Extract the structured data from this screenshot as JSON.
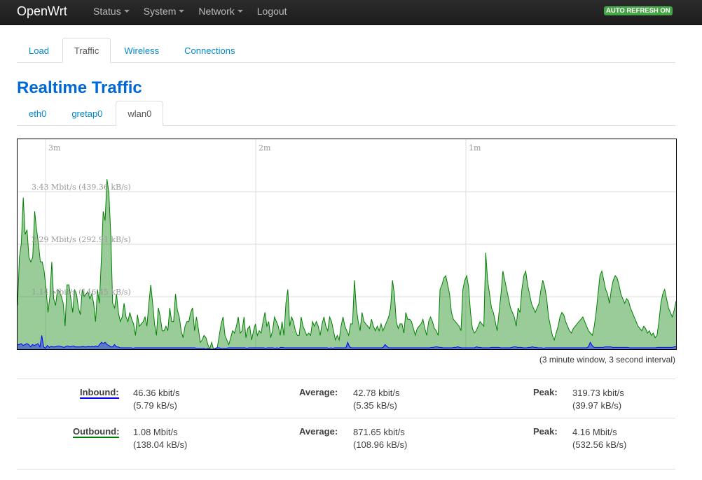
{
  "navbar": {
    "brand": "OpenWrt",
    "menu": [
      {
        "label": "Status",
        "dropdown": true
      },
      {
        "label": "System",
        "dropdown": true
      },
      {
        "label": "Network",
        "dropdown": true
      },
      {
        "label": "Logout",
        "dropdown": false
      }
    ],
    "badge": "AUTO REFRESH ON",
    "badge_color": "#46a546"
  },
  "tabs": [
    {
      "label": "Load",
      "active": false
    },
    {
      "label": "Traffic",
      "active": true
    },
    {
      "label": "Wireless",
      "active": false
    },
    {
      "label": "Connections",
      "active": false
    }
  ],
  "page_title": "Realtime Traffic",
  "interface_tabs": [
    {
      "label": "eth0",
      "active": false
    },
    {
      "label": "gretap0",
      "active": false
    },
    {
      "label": "wlan0",
      "active": true
    }
  ],
  "graph": {
    "time_labels": [
      "3m",
      "2m",
      "1m"
    ],
    "y_labels": [
      "3.43 Mbit/s (439.36 kB/s)",
      "2.29 Mbit/s (292.91 kB/s)",
      "1.14 Mbit/s (146.45 kB/s)"
    ],
    "caption": "(3 minute window, 3 second interval)",
    "outbound_color": "#008000",
    "inbound_color": "#0000ff"
  },
  "chart_data": {
    "type": "area",
    "xlabel": "",
    "ylabel": "",
    "ylim": [
      0,
      4.57
    ],
    "grid": true,
    "interval_seconds": 3,
    "x_ticks": [
      "3m",
      "2m",
      "1m"
    ],
    "y_ticks": [
      1.14,
      2.29,
      3.43
    ],
    "series": [
      {
        "values": [
          0.95,
          2.0,
          2.3,
          3.3,
          2.5,
          2.6,
          2.0,
          1.9,
          2.0,
          3.0,
          2.6,
          2.3,
          1.9,
          1.9,
          1.7,
          1.3,
          0.8,
          1.15,
          1.9,
          1.1,
          0.95,
          1.3,
          1.25,
          1.15,
          1.0,
          0.5,
          1.4,
          1.4,
          1.1,
          0.8,
          1.3,
          1.2,
          0.9,
          0.75,
          1.3,
          1.15,
          1.2,
          1.25,
          1.1,
          1.2,
          1.0,
          0.6,
          1.3,
          1.0,
          1.9,
          3.0,
          2.8,
          3.7,
          3.4,
          2.5,
          1.0,
          0.9,
          1.2,
          0.8,
          0.6,
          0.7,
          1.0,
          0.7,
          0.6,
          0.8,
          0.65,
          0.55,
          0.3,
          0.75,
          0.5,
          0.55,
          0.6,
          0.7,
          0.5,
          1.0,
          1.4,
          1.0,
          0.55,
          0.3,
          0.9,
          0.7,
          0.4,
          0.4,
          0.5,
          0.4,
          0.9,
          0.6,
          0.6,
          1.2,
          0.85,
          0.7,
          0.4,
          0.25,
          0.5,
          0.6,
          0.6,
          0.8,
          0.9,
          0.4,
          0.7,
          0.45,
          0.15,
          0.2,
          0.3,
          0.25,
          0.1,
          0.0,
          0.15,
          0.0,
          0.0,
          0.05,
          0.3,
          0.55,
          0.7,
          0.3,
          0.2,
          0.1,
          0.25,
          0.4,
          0.35,
          0.5,
          0.7,
          0.35,
          0.4,
          0.7,
          0.25,
          0.45,
          0.5,
          0.2,
          0.4,
          0.55,
          0.3,
          0.4,
          0.35,
          0.6,
          0.8,
          0.5,
          0.6,
          0.25,
          0.4,
          0.7,
          0.6,
          0.5,
          0.3,
          0.6,
          0.3,
          1.0,
          1.3,
          0.5,
          0.7,
          0.6,
          0.4,
          0.3,
          0.3,
          0.7,
          0.5,
          0.4,
          0.3,
          0.35,
          0.3,
          0.6,
          0.5,
          0.6,
          0.5,
          0.3,
          0.55,
          0.7,
          0.5,
          0.4,
          0.7,
          0.6,
          0.4,
          0.2,
          0.3,
          0.2,
          0.5,
          0.7,
          0.5,
          0.4,
          0.3,
          0.55,
          0.55,
          1.5,
          0.9,
          0.6,
          0.4,
          0.8,
          0.6,
          0.55,
          0.5,
          0.45,
          0.65,
          0.5,
          0.4,
          0.5,
          0.4,
          0.55,
          0.4,
          0.5,
          0.6,
          0.7,
          0.9,
          1.5,
          1.2,
          0.6,
          0.45,
          0.55,
          0.55,
          0.35,
          0.8,
          0.65,
          0.65,
          0.6,
          0.45,
          0.3,
          0.45,
          0.5,
          0.55,
          0.65,
          0.45,
          0.3,
          0.6,
          0.7,
          0.6,
          0.45,
          0.4,
          0.3,
          1.3,
          1.4,
          1.55,
          1.6,
          1.4,
          1.2,
          0.8,
          0.65,
          0.6,
          0.55,
          0.5,
          0.4,
          1.3,
          1.5,
          1.6,
          1.35,
          0.8,
          0.45,
          0.35,
          0.4,
          0.5,
          0.6,
          0.55,
          0.5,
          2.1,
          1.5,
          1.2,
          0.9,
          0.8,
          0.6,
          0.4,
          0.8,
          1.2,
          1.7,
          1.5,
          1.3,
          1.1,
          0.9,
          0.8,
          0.7,
          0.5,
          0.9,
          0.8,
          1.3,
          1.6,
          1.7,
          1.4,
          1.2,
          1.0,
          0.9,
          0.8,
          0.9,
          1.0,
          1.3,
          1.5,
          1.35,
          1.1,
          0.7,
          0.5,
          0.3,
          0.2,
          0.35,
          0.5,
          0.7,
          0.8,
          0.75,
          0.6,
          0.5,
          0.4,
          0.35,
          0.45,
          0.5,
          0.55,
          0.6,
          0.65,
          0.7,
          0.6,
          0.5,
          0.4,
          0.35,
          0.3,
          0.5,
          0.8,
          1.2,
          1.6,
          1.7,
          1.5,
          1.3,
          1.2,
          1.0,
          1.3,
          1.5,
          1.6,
          1.55,
          1.4,
          1.2,
          1.1,
          1.0,
          1.1,
          1.05,
          0.9,
          0.8,
          0.7,
          0.6,
          0.5,
          0.45,
          0.4,
          0.5,
          0.45,
          0.35,
          0.4,
          0.3,
          0.35,
          0.25,
          0.3,
          0.6,
          1.0,
          1.2,
          1.3,
          1.1,
          0.9,
          0.8,
          0.7,
          0.85,
          1.05
        ],
        "color": "#008000"
      },
      {
        "values": [
          0.1,
          0.1,
          0.12,
          0.08,
          0.1,
          0.12,
          0.1,
          0.05,
          0.1,
          0.08,
          0.1,
          0.12,
          0.05,
          0.3,
          0.05,
          0.02,
          0.08,
          0.04,
          0.06,
          0.05,
          0.05,
          0.06,
          0.07,
          0.06,
          0.05,
          0.04,
          0.06,
          0.07,
          0.05,
          0.06,
          0.07,
          0.05,
          0.05,
          0.05,
          0.05,
          0.06,
          0.05,
          0.05,
          0.06,
          0.05,
          0.06,
          0.05,
          0.07,
          0.05,
          0.1,
          0.15,
          0.12,
          0.15,
          0.1,
          0.08,
          0.05,
          0.05,
          0.1,
          0.05,
          0.05,
          0.03,
          0.03,
          0.03,
          0.03,
          0.03,
          0.03,
          0.03,
          0.02,
          0.03,
          0.03,
          0.03,
          0.03,
          0.03,
          0.03,
          0.03,
          0.03,
          0.03,
          0.03,
          0.03,
          0.03,
          0.03,
          0.03,
          0.03,
          0.03,
          0.03,
          0.03,
          0.03,
          0.03,
          0.03,
          0.03,
          0.03,
          0.03,
          0.03,
          0.03,
          0.03,
          0.03,
          0.03,
          0.03,
          0.03,
          0.03,
          0.03,
          0.02,
          0.02,
          0.02,
          0.02,
          0.02,
          0.0,
          0.02,
          0.0,
          0.0,
          0.0,
          0.02,
          0.03,
          0.03,
          0.02,
          0.02,
          0.02,
          0.02,
          0.03,
          0.03,
          0.03,
          0.03,
          0.03,
          0.03,
          0.03,
          0.03,
          0.03,
          0.03,
          0.02,
          0.03,
          0.03,
          0.03,
          0.03,
          0.03,
          0.03,
          0.03,
          0.03,
          0.03,
          0.02,
          0.03,
          0.03,
          0.03,
          0.03,
          0.02,
          0.03,
          0.02,
          0.04,
          0.04,
          0.03,
          0.03,
          0.03,
          0.03,
          0.03,
          0.03,
          0.03,
          0.03,
          0.03,
          0.03,
          0.03,
          0.03,
          0.03,
          0.03,
          0.03,
          0.03,
          0.03,
          0.03,
          0.03,
          0.03,
          0.03,
          0.03,
          0.03,
          0.03,
          0.02,
          0.03,
          0.02,
          0.03,
          0.03,
          0.03,
          0.03,
          0.03,
          0.03,
          0.03,
          0.15,
          0.05,
          0.03,
          0.03,
          0.03,
          0.03,
          0.03,
          0.03,
          0.03,
          0.03,
          0.03,
          0.03,
          0.03,
          0.03,
          0.03,
          0.03,
          0.03,
          0.03,
          0.03,
          0.04,
          0.1,
          0.06,
          0.03,
          0.03,
          0.03,
          0.03,
          0.03,
          0.03,
          0.03,
          0.03,
          0.03,
          0.03,
          0.03,
          0.03,
          0.03,
          0.03,
          0.03,
          0.03,
          0.03,
          0.03,
          0.03,
          0.03,
          0.03,
          0.03,
          0.03,
          0.04,
          0.04,
          0.05,
          0.05,
          0.04,
          0.04,
          0.03,
          0.03,
          0.03,
          0.03,
          0.03,
          0.03,
          0.04,
          0.04,
          0.05,
          0.04,
          0.03,
          0.03,
          0.03,
          0.03,
          0.03,
          0.03,
          0.03,
          0.03,
          0.05,
          0.04,
          0.04,
          0.03,
          0.03,
          0.03,
          0.03,
          0.03,
          0.04,
          0.04,
          0.04,
          0.04,
          0.04,
          0.03,
          0.03,
          0.03,
          0.03,
          0.03,
          0.03,
          0.04,
          0.05,
          0.05,
          0.04,
          0.04,
          0.04,
          0.03,
          0.03,
          0.03,
          0.04,
          0.04,
          0.05,
          0.04,
          0.04,
          0.03,
          0.03,
          0.03,
          0.02,
          0.03,
          0.03,
          0.03,
          0.03,
          0.03,
          0.03,
          0.03,
          0.03,
          0.03,
          0.03,
          0.03,
          0.03,
          0.03,
          0.03,
          0.03,
          0.03,
          0.03,
          0.03,
          0.03,
          0.03,
          0.03,
          0.03,
          0.03,
          0.05,
          0.15,
          0.08,
          0.04,
          0.04,
          0.04,
          0.04,
          0.04,
          0.04,
          0.05,
          0.05,
          0.05,
          0.05,
          0.04,
          0.04,
          0.04,
          0.04,
          0.04,
          0.04,
          0.04,
          0.04,
          0.04,
          0.03,
          0.03,
          0.03,
          0.03,
          0.03,
          0.03,
          0.03,
          0.03,
          0.03,
          0.03,
          0.03,
          0.03,
          0.03,
          0.03,
          0.03,
          0.04,
          0.04,
          0.04,
          0.04,
          0.04,
          0.04,
          0.04,
          0.04,
          0.04,
          0.05,
          0.06
        ],
        "color": "#0000ff"
      }
    ]
  },
  "stats": {
    "inbound": {
      "label": "Inbound:",
      "current": "46.36 kbit/s",
      "current_kb": "(5.79 kB/s)",
      "avg_label": "Average:",
      "average": "42.78 kbit/s",
      "average_kb": "(5.35 kB/s)",
      "peak_label": "Peak:",
      "peak": "319.73 kbit/s",
      "peak_kb": "(39.97 kB/s)"
    },
    "outbound": {
      "label": "Outbound:",
      "current": "1.08 Mbit/s",
      "current_kb": "(138.04 kB/s)",
      "avg_label": "Average:",
      "average": "871.65 kbit/s",
      "average_kb": "(108.96 kB/s)",
      "peak_label": "Peak:",
      "peak": "4.16 Mbit/s",
      "peak_kb": "(532.56 kB/s)"
    }
  }
}
